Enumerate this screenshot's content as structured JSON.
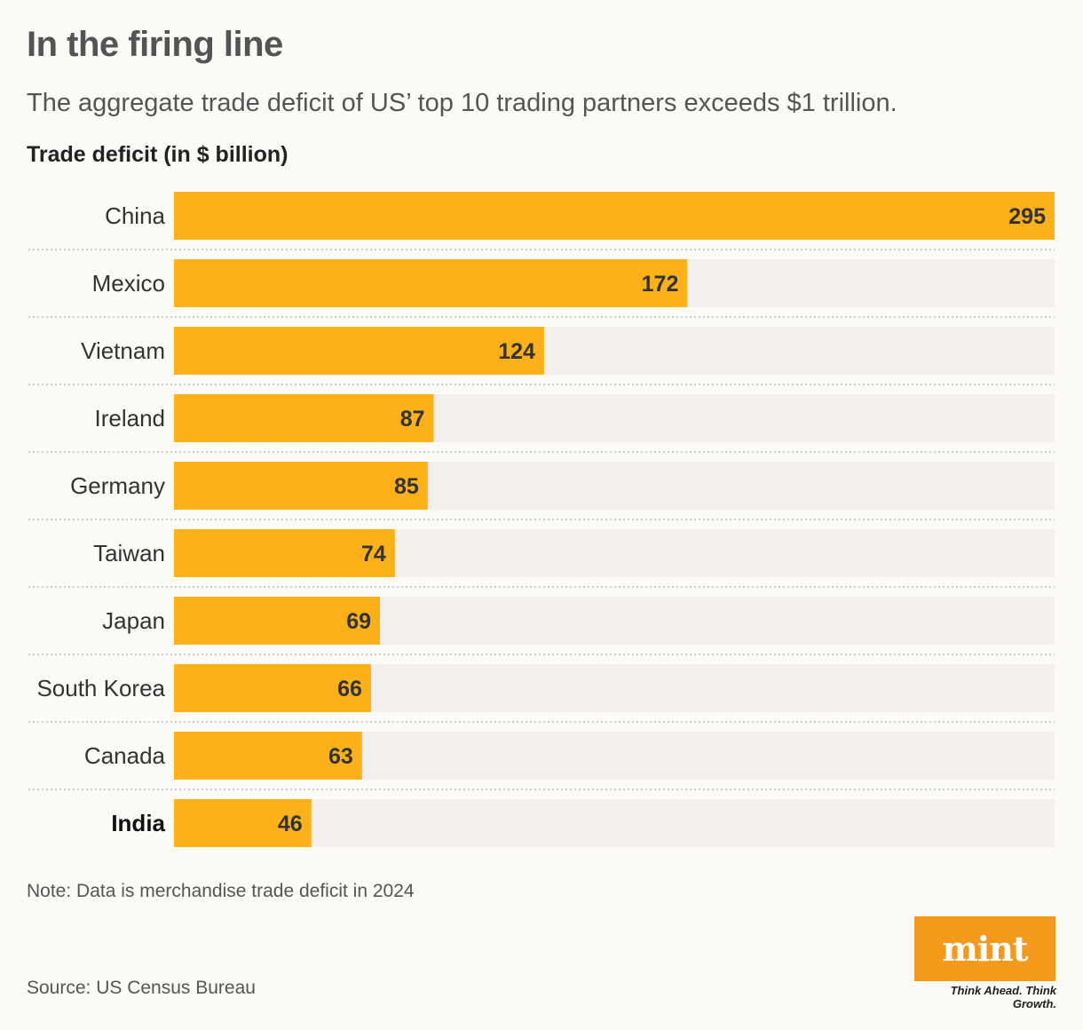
{
  "header": {
    "title": "In the firing line",
    "subtitle": "The aggregate trade deficit of US’ top 10 trading partners exceeds $1 trillion.",
    "axis_title": "Trade deficit (in $ billion)"
  },
  "footer": {
    "note": "Note: Data is merchandise trade deficit in 2024",
    "source": "Source: US Census Bureau",
    "logo_text": "mint",
    "tagline": "Think Ahead. Think Growth."
  },
  "colors": {
    "bar": "#fbb117",
    "track": "#f2efed",
    "logo": "#f39a1d"
  },
  "chart_data": {
    "type": "bar",
    "orientation": "horizontal",
    "title": "In the firing line",
    "xlabel": "Trade deficit (in $ billion)",
    "categories": [
      "China",
      "Mexico",
      "Vietnam",
      "Ireland",
      "Germany",
      "Taiwan",
      "Japan",
      "South Korea",
      "Canada",
      "India"
    ],
    "values": [
      295,
      172,
      124,
      87,
      85,
      74,
      69,
      66,
      63,
      46
    ],
    "highlight": "India",
    "xlim": [
      0,
      295
    ],
    "grid": false
  }
}
